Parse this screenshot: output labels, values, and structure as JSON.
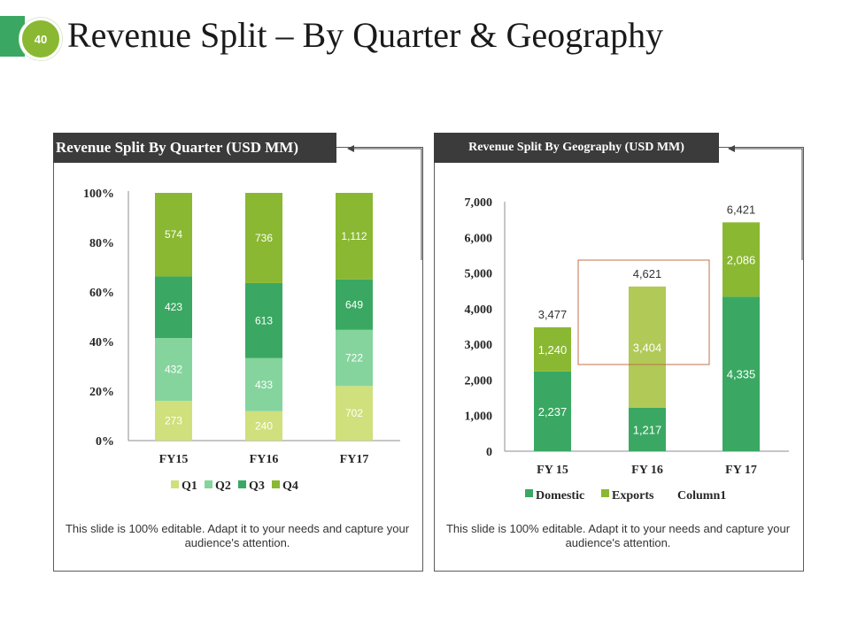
{
  "slide": {
    "number": "40",
    "title": "Revenue Split – By Quarter & Geography"
  },
  "left": {
    "title": "Revenue Split By Quarter (USD MM)",
    "note": "This slide is 100% editable. Adapt it to your needs and capture your audience's attention."
  },
  "right": {
    "title": "Revenue Split By Geography (USD MM)",
    "note": "This slide is 100% editable. Adapt it to your needs and capture your audience's attention."
  },
  "chart_data": [
    {
      "type": "bar",
      "stacked": "percent",
      "title": "Revenue Split By Quarter (USD MM)",
      "categories": [
        "FY15",
        "FY16",
        "FY17"
      ],
      "series": [
        {
          "name": "Q1",
          "values": [
            273,
            240,
            702
          ],
          "color": "#cfe07c"
        },
        {
          "name": "Q2",
          "values": [
            432,
            433,
            722
          ],
          "color": "#85d49d"
        },
        {
          "name": "Q3",
          "values": [
            423,
            613,
            649
          ],
          "color": "#3aa862"
        },
        {
          "name": "Q4",
          "values": [
            574,
            736,
            1112
          ],
          "color": "#8ab832"
        }
      ],
      "yticks": [
        "0%",
        "20%",
        "40%",
        "60%",
        "80%",
        "100%"
      ],
      "ylim": [
        0,
        100
      ],
      "legend": "bottom"
    },
    {
      "type": "bar",
      "stacked": "absolute",
      "title": "Revenue Split By Geography (USD MM)",
      "categories": [
        "FY 15",
        "FY 16",
        "FY 17"
      ],
      "series": [
        {
          "name": "Domestic",
          "values": [
            2237,
            1217,
            4335
          ],
          "color": "#3aa862"
        },
        {
          "name": "Exports",
          "values": [
            1240,
            3404,
            2086
          ],
          "color": "#8ab832"
        }
      ],
      "extra_legend": "Column1",
      "totals": [
        3477,
        4621,
        6421
      ],
      "highlight_category": "FY 16",
      "highlight_color": "#c0704e",
      "yticks": [
        "0",
        "1,000",
        "2,000",
        "3,000",
        "4,000",
        "5,000",
        "6,000",
        "7,000"
      ],
      "ylim": [
        0,
        7000
      ],
      "legend": "bottom"
    }
  ]
}
